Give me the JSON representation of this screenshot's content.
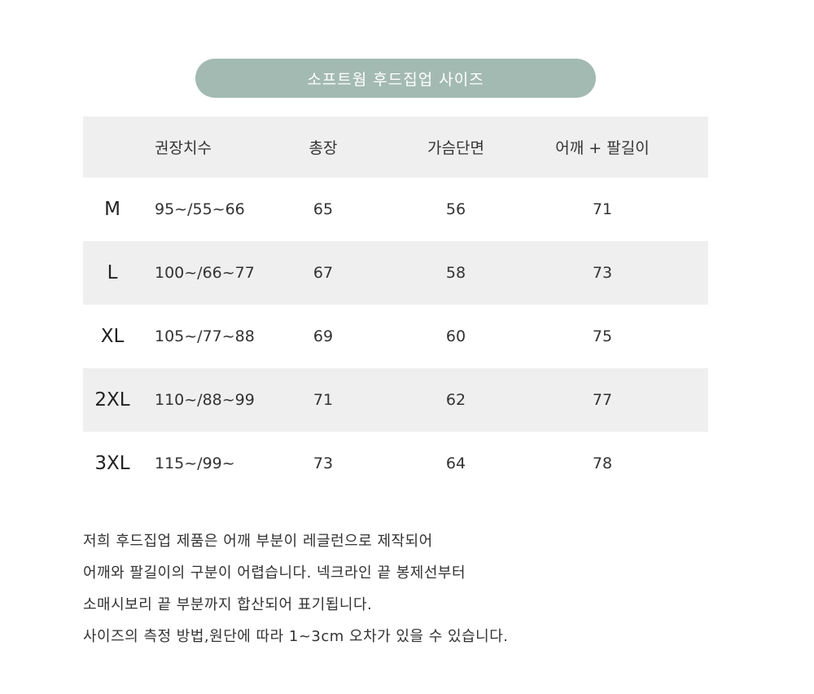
{
  "title": "소프트웜 후드집업 사이즈",
  "headers": [
    "",
    "권장치수",
    "총장",
    "가슴단면",
    "어깨 + 팔길이"
  ],
  "rows": [
    [
      "M",
      "95~/55~66",
      "65",
      "56",
      "71"
    ],
    [
      "L",
      "100~/66~77",
      "67",
      "58",
      "73"
    ],
    [
      "XL",
      "105~/77~88",
      "69",
      "60",
      "75"
    ],
    [
      "2XL",
      "110~/88~99",
      "71",
      "62",
      "77"
    ],
    [
      "3XL",
      "115~/99~",
      "73",
      "64",
      "78"
    ]
  ],
  "notes": [
    "저희 후드집업 제품은 어깨 부분이 레글런으로 제작되어",
    "어깨와 팔길이의 구분이 어렵습니다. 넥크라인 끝 봉제선부터",
    "소매시보리 끝 부분까지 합산되어 표기됩니다.",
    "사이즈의 측정 방법,원단에 따라 1~3cm 오차가 있을 수 있습니다."
  ],
  "colors": {
    "pill": "#a3bab2",
    "stripe": "#efefef"
  }
}
